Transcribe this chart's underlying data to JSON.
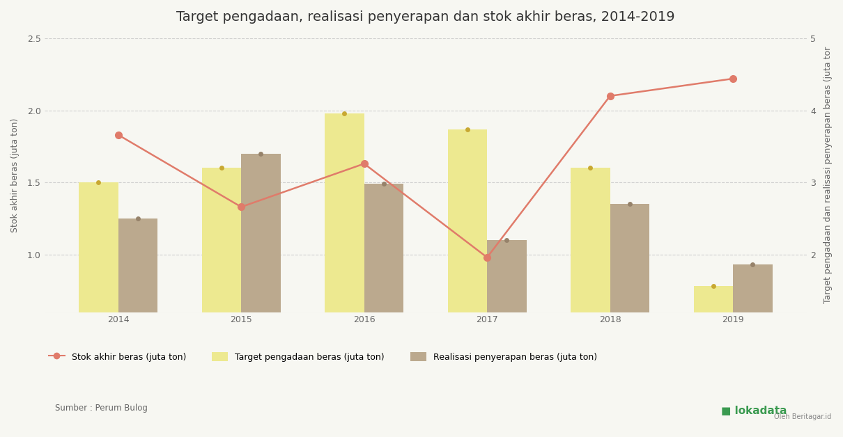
{
  "title": "Target pengadaan, realisasi penyerapan dan stok akhir beras, 2014-2019",
  "years": [
    2014,
    2015,
    2016,
    2017,
    2018,
    2019
  ],
  "target_pengadaan": [
    1.5,
    1.6,
    1.98,
    1.87,
    1.6,
    0.78
  ],
  "realisasi_penyerapan": [
    1.25,
    1.7,
    1.49,
    1.1,
    1.35,
    0.93
  ],
  "stok_akhir": [
    1.83,
    1.33,
    1.63,
    0.98,
    2.1,
    2.22
  ],
  "bar_color_target": "#EDE990",
  "bar_color_realisasi": "#BBA98E",
  "line_color": "#E07B6A",
  "marker_color_bar": "#C8A832",
  "marker_color_real": "#96826A",
  "ylabel_left": "Stok akhir beras (juta ton)",
  "ylabel_right": "Target pengadaan dan realisasi penyerapan beras (juta tor",
  "ylim_left": [
    0.6,
    2.5
  ],
  "ylim_right": [
    1.2,
    5.0
  ],
  "yticks_left": [
    1.0,
    1.5,
    2.0,
    2.5
  ],
  "yticks_right": [
    2.0,
    3.0,
    4.0,
    5.0
  ],
  "source_text": "Sumber : Perum Bulog",
  "legend_labels": [
    "Stok akhir beras (juta ton)",
    "Target pengadaan beras (juta ton)",
    "Realisasi penyerapan beras (juta ton)"
  ],
  "background_color": "#f7f7f2",
  "title_fontsize": 14,
  "label_fontsize": 9,
  "tick_fontsize": 9,
  "bar_width": 0.32
}
